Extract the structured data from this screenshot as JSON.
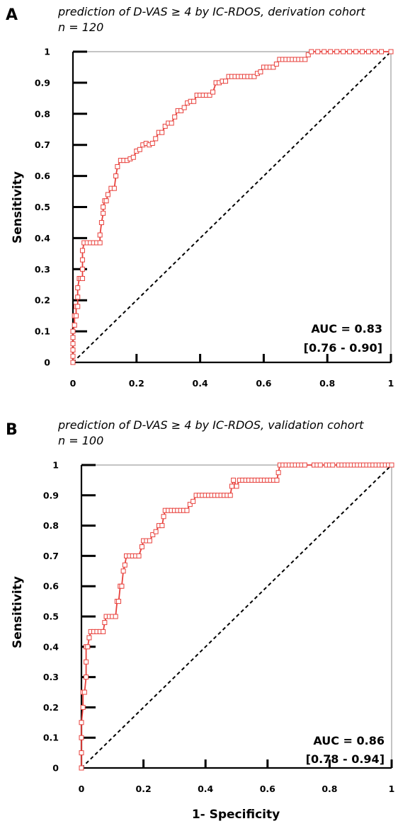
{
  "chart_data": [
    {
      "panel": "A",
      "type": "line",
      "subtitle_line1": "prediction of D-VAS ≥  4  by IC-RDOS, derivation cohort",
      "subtitle_line2": "n = 120",
      "ylabel": "Sensitivity",
      "xlabel": "",
      "xlim": [
        0,
        1
      ],
      "ylim": [
        0,
        1
      ],
      "x_ticks": [
        "0",
        "0.2",
        "0.4",
        "0.6",
        "0.8",
        "1"
      ],
      "y_ticks": [
        "0",
        "0.1",
        "0.2",
        "0.3",
        "0.4",
        "0.5",
        "0.6",
        "0.7",
        "0.8",
        "0.9",
        "1"
      ],
      "auc_label": "AUC = 0.83",
      "ci_label": "[0.76 - 0.90]",
      "reference_line": "diagonal dashed",
      "marker": "open square",
      "line_color": "#e8413c",
      "grid": false,
      "roc": [
        [
          0.0,
          0.0
        ],
        [
          0.0,
          0.02
        ],
        [
          0.0,
          0.04
        ],
        [
          0.0,
          0.06
        ],
        [
          0.0,
          0.08
        ],
        [
          0.0,
          0.1
        ],
        [
          0.005,
          0.12
        ],
        [
          0.005,
          0.15
        ],
        [
          0.01,
          0.15
        ],
        [
          0.01,
          0.18
        ],
        [
          0.015,
          0.18
        ],
        [
          0.015,
          0.21
        ],
        [
          0.015,
          0.24
        ],
        [
          0.02,
          0.27
        ],
        [
          0.025,
          0.27
        ],
        [
          0.03,
          0.27
        ],
        [
          0.03,
          0.3
        ],
        [
          0.03,
          0.33
        ],
        [
          0.03,
          0.36
        ],
        [
          0.035,
          0.385
        ],
        [
          0.045,
          0.385
        ],
        [
          0.055,
          0.385
        ],
        [
          0.065,
          0.385
        ],
        [
          0.075,
          0.385
        ],
        [
          0.085,
          0.385
        ],
        [
          0.085,
          0.41
        ],
        [
          0.09,
          0.45
        ],
        [
          0.095,
          0.48
        ],
        [
          0.095,
          0.5
        ],
        [
          0.1,
          0.52
        ],
        [
          0.105,
          0.52
        ],
        [
          0.11,
          0.54
        ],
        [
          0.12,
          0.56
        ],
        [
          0.13,
          0.56
        ],
        [
          0.135,
          0.6
        ],
        [
          0.14,
          0.63
        ],
        [
          0.15,
          0.65
        ],
        [
          0.16,
          0.65
        ],
        [
          0.17,
          0.65
        ],
        [
          0.18,
          0.655
        ],
        [
          0.19,
          0.66
        ],
        [
          0.2,
          0.68
        ],
        [
          0.21,
          0.685
        ],
        [
          0.22,
          0.7
        ],
        [
          0.23,
          0.705
        ],
        [
          0.24,
          0.7
        ],
        [
          0.25,
          0.705
        ],
        [
          0.26,
          0.72
        ],
        [
          0.27,
          0.74
        ],
        [
          0.28,
          0.74
        ],
        [
          0.29,
          0.76
        ],
        [
          0.3,
          0.77
        ],
        [
          0.31,
          0.77
        ],
        [
          0.32,
          0.79
        ],
        [
          0.33,
          0.81
        ],
        [
          0.34,
          0.81
        ],
        [
          0.35,
          0.82
        ],
        [
          0.36,
          0.835
        ],
        [
          0.37,
          0.84
        ],
        [
          0.38,
          0.84
        ],
        [
          0.39,
          0.86
        ],
        [
          0.4,
          0.86
        ],
        [
          0.41,
          0.86
        ],
        [
          0.42,
          0.86
        ],
        [
          0.43,
          0.86
        ],
        [
          0.44,
          0.87
        ],
        [
          0.45,
          0.9
        ],
        [
          0.46,
          0.9
        ],
        [
          0.47,
          0.905
        ],
        [
          0.48,
          0.905
        ],
        [
          0.49,
          0.92
        ],
        [
          0.5,
          0.92
        ],
        [
          0.51,
          0.92
        ],
        [
          0.52,
          0.92
        ],
        [
          0.53,
          0.92
        ],
        [
          0.54,
          0.92
        ],
        [
          0.55,
          0.92
        ],
        [
          0.56,
          0.92
        ],
        [
          0.57,
          0.92
        ],
        [
          0.58,
          0.93
        ],
        [
          0.59,
          0.935
        ],
        [
          0.6,
          0.95
        ],
        [
          0.61,
          0.95
        ],
        [
          0.62,
          0.95
        ],
        [
          0.63,
          0.95
        ],
        [
          0.64,
          0.96
        ],
        [
          0.65,
          0.975
        ],
        [
          0.66,
          0.975
        ],
        [
          0.67,
          0.975
        ],
        [
          0.68,
          0.975
        ],
        [
          0.69,
          0.975
        ],
        [
          0.7,
          0.975
        ],
        [
          0.71,
          0.975
        ],
        [
          0.72,
          0.975
        ],
        [
          0.73,
          0.975
        ],
        [
          0.74,
          0.99
        ],
        [
          0.75,
          1.0
        ],
        [
          0.77,
          1.0
        ],
        [
          0.79,
          1.0
        ],
        [
          0.81,
          1.0
        ],
        [
          0.83,
          1.0
        ],
        [
          0.85,
          1.0
        ],
        [
          0.87,
          1.0
        ],
        [
          0.89,
          1.0
        ],
        [
          0.91,
          1.0
        ],
        [
          0.93,
          1.0
        ],
        [
          0.95,
          1.0
        ],
        [
          0.97,
          1.0
        ],
        [
          1.0,
          1.0
        ]
      ]
    },
    {
      "panel": "B",
      "type": "line",
      "subtitle_line1": "prediction of D-VAS ≥ 4  by IC-RDOS, validation cohort",
      "subtitle_line2": "n = 100",
      "ylabel": "Sensitivity",
      "xlabel": "1- Specificity",
      "xlim": [
        0,
        1
      ],
      "ylim": [
        0,
        1
      ],
      "x_ticks": [
        "0",
        "0.2",
        "0.4",
        "0.6",
        "0.8",
        "1"
      ],
      "y_ticks": [
        "0",
        "0.1",
        "0.2",
        "0.3",
        "0.4",
        "0.5",
        "0.6",
        "0.7",
        "0.8",
        "0.9",
        "1"
      ],
      "auc_label": "AUC = 0.86",
      "ci_label": "[0.78 - 0.94]",
      "reference_line": "diagonal dashed",
      "marker": "open square",
      "line_color": "#e8413c",
      "grid": false,
      "roc": [
        [
          0.0,
          0.0
        ],
        [
          0.0,
          0.05
        ],
        [
          0.0,
          0.1
        ],
        [
          0.0,
          0.15
        ],
        [
          0.005,
          0.2
        ],
        [
          0.005,
          0.25
        ],
        [
          0.01,
          0.25
        ],
        [
          0.015,
          0.3
        ],
        [
          0.015,
          0.35
        ],
        [
          0.015,
          0.4
        ],
        [
          0.02,
          0.4
        ],
        [
          0.025,
          0.43
        ],
        [
          0.03,
          0.45
        ],
        [
          0.04,
          0.45
        ],
        [
          0.05,
          0.45
        ],
        [
          0.06,
          0.45
        ],
        [
          0.07,
          0.45
        ],
        [
          0.075,
          0.48
        ],
        [
          0.08,
          0.5
        ],
        [
          0.09,
          0.5
        ],
        [
          0.1,
          0.5
        ],
        [
          0.11,
          0.5
        ],
        [
          0.115,
          0.55
        ],
        [
          0.12,
          0.55
        ],
        [
          0.125,
          0.6
        ],
        [
          0.13,
          0.6
        ],
        [
          0.135,
          0.65
        ],
        [
          0.14,
          0.67
        ],
        [
          0.145,
          0.7
        ],
        [
          0.155,
          0.7
        ],
        [
          0.165,
          0.7
        ],
        [
          0.175,
          0.7
        ],
        [
          0.185,
          0.7
        ],
        [
          0.195,
          0.73
        ],
        [
          0.2,
          0.75
        ],
        [
          0.21,
          0.75
        ],
        [
          0.22,
          0.75
        ],
        [
          0.23,
          0.77
        ],
        [
          0.24,
          0.78
        ],
        [
          0.25,
          0.8
        ],
        [
          0.26,
          0.8
        ],
        [
          0.265,
          0.83
        ],
        [
          0.27,
          0.85
        ],
        [
          0.28,
          0.85
        ],
        [
          0.29,
          0.85
        ],
        [
          0.3,
          0.85
        ],
        [
          0.31,
          0.85
        ],
        [
          0.32,
          0.85
        ],
        [
          0.33,
          0.85
        ],
        [
          0.34,
          0.85
        ],
        [
          0.35,
          0.87
        ],
        [
          0.36,
          0.88
        ],
        [
          0.37,
          0.9
        ],
        [
          0.38,
          0.9
        ],
        [
          0.39,
          0.9
        ],
        [
          0.4,
          0.9
        ],
        [
          0.41,
          0.9
        ],
        [
          0.42,
          0.9
        ],
        [
          0.43,
          0.9
        ],
        [
          0.44,
          0.9
        ],
        [
          0.45,
          0.9
        ],
        [
          0.46,
          0.9
        ],
        [
          0.47,
          0.9
        ],
        [
          0.48,
          0.9
        ],
        [
          0.485,
          0.93
        ],
        [
          0.49,
          0.95
        ],
        [
          0.5,
          0.93
        ],
        [
          0.51,
          0.95
        ],
        [
          0.52,
          0.95
        ],
        [
          0.53,
          0.95
        ],
        [
          0.54,
          0.95
        ],
        [
          0.55,
          0.95
        ],
        [
          0.56,
          0.95
        ],
        [
          0.57,
          0.95
        ],
        [
          0.58,
          0.95
        ],
        [
          0.59,
          0.95
        ],
        [
          0.6,
          0.95
        ],
        [
          0.61,
          0.95
        ],
        [
          0.62,
          0.95
        ],
        [
          0.63,
          0.95
        ],
        [
          0.635,
          0.975
        ],
        [
          0.64,
          1.0
        ],
        [
          0.65,
          1.0
        ],
        [
          0.66,
          1.0
        ],
        [
          0.67,
          1.0
        ],
        [
          0.68,
          1.0
        ],
        [
          0.69,
          1.0
        ],
        [
          0.7,
          1.0
        ],
        [
          0.71,
          1.0
        ],
        [
          0.72,
          1.0
        ],
        [
          0.75,
          1.0
        ],
        [
          0.76,
          1.0
        ],
        [
          0.77,
          1.0
        ],
        [
          0.79,
          1.0
        ],
        [
          0.8,
          1.0
        ],
        [
          0.81,
          1.0
        ],
        [
          0.83,
          1.0
        ],
        [
          0.84,
          1.0
        ],
        [
          0.85,
          1.0
        ],
        [
          0.86,
          1.0
        ],
        [
          0.87,
          1.0
        ],
        [
          0.88,
          1.0
        ],
        [
          0.89,
          1.0
        ],
        [
          0.9,
          1.0
        ],
        [
          0.91,
          1.0
        ],
        [
          0.92,
          1.0
        ],
        [
          0.93,
          1.0
        ],
        [
          0.94,
          1.0
        ],
        [
          0.95,
          1.0
        ],
        [
          0.96,
          1.0
        ],
        [
          0.97,
          1.0
        ],
        [
          0.98,
          1.0
        ],
        [
          0.99,
          1.0
        ],
        [
          1.0,
          1.0
        ]
      ]
    }
  ]
}
